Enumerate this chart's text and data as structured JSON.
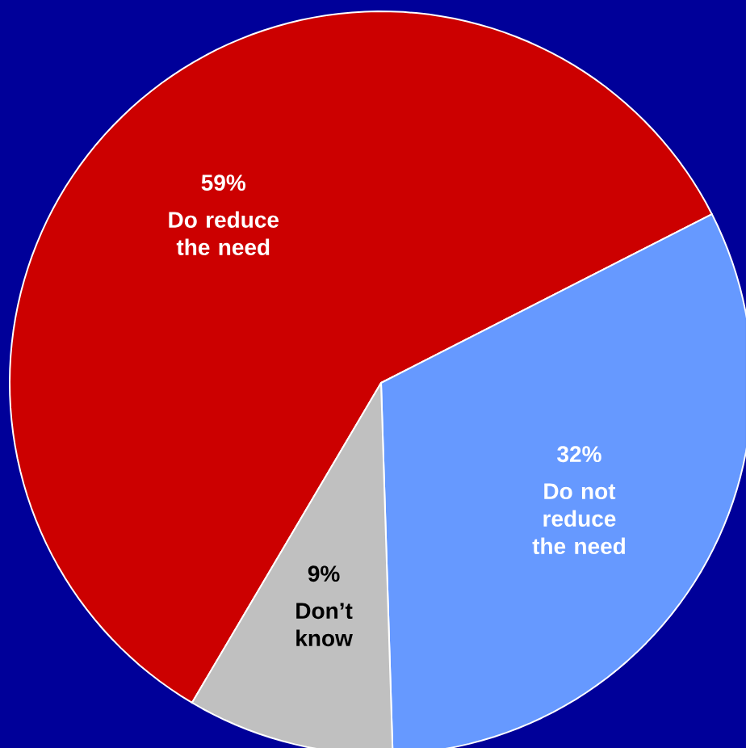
{
  "chart_data": {
    "type": "pie",
    "categories": [
      "Do reduce the need",
      "Do not reduce the need",
      "Don’t know"
    ],
    "values": [
      59,
      32,
      9
    ],
    "colors": [
      "#cc0000",
      "#6699ff",
      "#c0c0c0"
    ],
    "value_labels": [
      "59%",
      "32%",
      "9%"
    ],
    "legend": false
  }
}
